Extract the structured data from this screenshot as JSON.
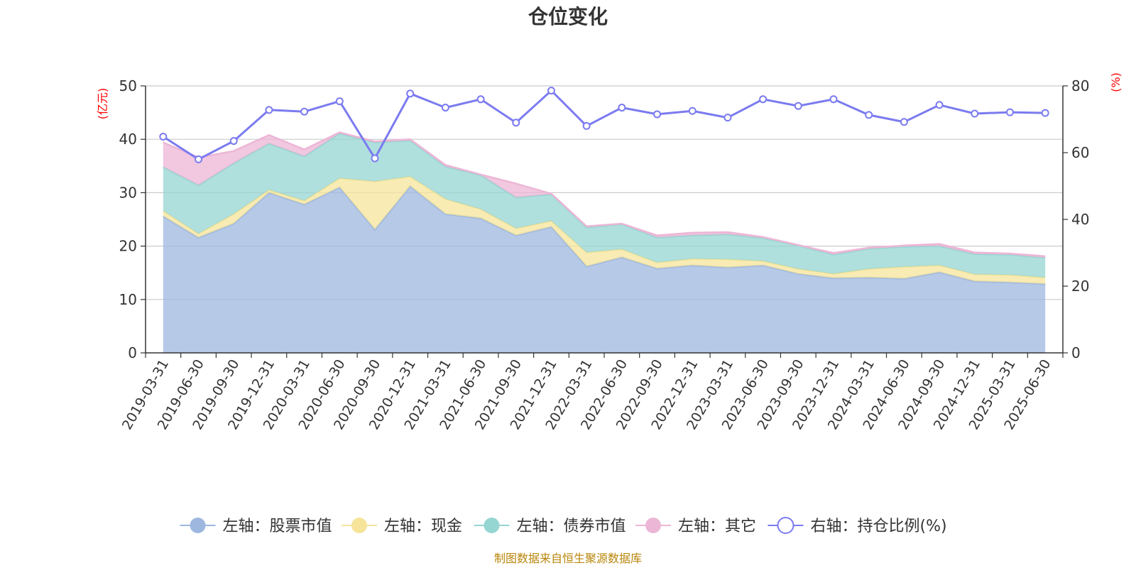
{
  "chart_data": {
    "type": "area",
    "title": "仓位变化",
    "left_axis_unit": "(亿元)",
    "right_axis_unit": "(%)",
    "left_ylim": [
      0,
      50
    ],
    "left_yticks": [
      "0",
      "10",
      "20",
      "30",
      "40",
      "50"
    ],
    "right_ylim": [
      0,
      80
    ],
    "right_yticks": [
      "0",
      "20",
      "40",
      "60",
      "80"
    ],
    "grid": true,
    "legend_position": "bottom",
    "categories": [
      "2019-03-31",
      "2019-06-30",
      "2019-09-30",
      "2019-12-31",
      "2020-03-31",
      "2020-06-30",
      "2020-09-30",
      "2020-12-31",
      "2021-03-31",
      "2021-06-30",
      "2021-09-30",
      "2021-12-31",
      "2022-03-31",
      "2022-06-30",
      "2022-09-30",
      "2022-12-31",
      "2023-03-31",
      "2023-06-30",
      "2023-09-30",
      "2023-12-31",
      "2024-03-31",
      "2024-06-30",
      "2024-09-30",
      "2024-12-31",
      "2025-03-31",
      "2025-06-30"
    ],
    "series": [
      {
        "name": "左轴：股票市值",
        "axis": "left",
        "stack": true,
        "color": "#9db7df",
        "values": [
          25.6,
          21.6,
          24.2,
          30.0,
          27.8,
          31.0,
          23.1,
          31.2,
          26.0,
          25.2,
          22.0,
          23.6,
          16.2,
          17.9,
          15.8,
          16.4,
          16.0,
          16.4,
          14.8,
          14.0,
          14.1,
          13.9,
          15.1,
          13.4,
          13.2,
          12.9
        ]
      },
      {
        "name": "左轴：现金",
        "axis": "left",
        "stack": true,
        "color": "#f6e49a",
        "values": [
          1.0,
          0.7,
          1.8,
          0.5,
          0.7,
          1.7,
          9.0,
          1.8,
          2.8,
          1.7,
          1.3,
          1.1,
          2.6,
          1.5,
          1.1,
          1.2,
          1.5,
          0.8,
          0.9,
          0.8,
          1.6,
          2.2,
          1.3,
          1.3,
          1.4,
          1.2
        ]
      },
      {
        "name": "左轴：债券市值",
        "axis": "left",
        "stack": true,
        "color": "#95d6d3",
        "values": [
          8.2,
          9.1,
          9.5,
          8.7,
          8.3,
          8.4,
          7.3,
          6.8,
          6.1,
          6.4,
          5.8,
          5.0,
          4.7,
          4.7,
          4.7,
          4.4,
          4.7,
          4.3,
          4.4,
          3.6,
          3.8,
          3.8,
          3.6,
          3.8,
          3.8,
          3.7
        ]
      },
      {
        "name": "左轴：其它",
        "axis": "left",
        "stack": true,
        "color": "#ecb6d6",
        "values": [
          4.6,
          5.2,
          2.3,
          1.6,
          1.3,
          0.2,
          0.2,
          0.2,
          0.3,
          0.1,
          2.6,
          0.1,
          0.2,
          0.1,
          0.4,
          0.5,
          0.4,
          0.2,
          0.1,
          0.3,
          0.2,
          0.2,
          0.4,
          0.3,
          0.2,
          0.3
        ]
      },
      {
        "name": "右轴：持仓比例(%)",
        "axis": "right",
        "type": "line",
        "color": "#7b7bf0",
        "values": [
          64.8,
          58.0,
          63.5,
          72.8,
          72.3,
          75.4,
          58.3,
          77.7,
          73.5,
          76.0,
          69.0,
          78.6,
          68.0,
          73.5,
          71.5,
          72.5,
          70.5,
          76.0,
          74.0,
          76.0,
          71.3,
          69.2,
          74.3,
          71.7,
          72.1,
          71.9
        ]
      }
    ]
  },
  "source_note": "制图数据来自恒生聚源数据库"
}
